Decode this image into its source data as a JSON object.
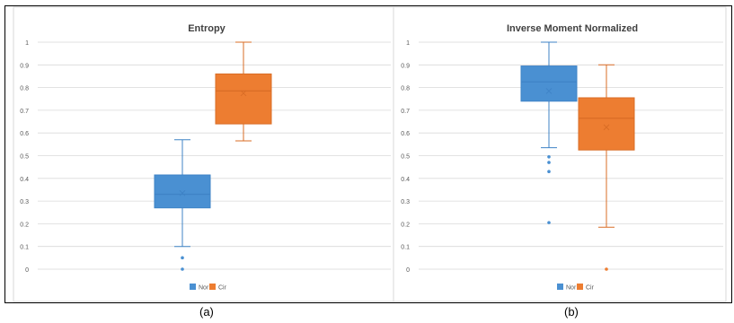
{
  "colors": {
    "nor": "#4a90d2",
    "cir": "#ed7d31",
    "nor_line": "#3f83c6",
    "cir_line": "#d96d26",
    "grid": "#d9d9d9",
    "text": "#595959"
  },
  "captions": [
    "(a)",
    "(b)"
  ],
  "chart_data": [
    {
      "type": "box",
      "title": "Entropy",
      "ylim": [
        0,
        1
      ],
      "yticks": [
        "0",
        "0.1",
        "0.2",
        "0.3",
        "0.4",
        "0.5",
        "0.6",
        "0.7",
        "0.8",
        "0.9",
        "1"
      ],
      "grid": true,
      "legend_position": "bottom",
      "series": [
        {
          "name": "Nor",
          "min": 0.1,
          "q1": 0.27,
          "median": 0.33,
          "q3": 0.415,
          "max": 0.57,
          "mean": 0.335,
          "outliers": [
            0.05,
            0.0
          ]
        },
        {
          "name": "Cir",
          "min": 0.565,
          "q1": 0.64,
          "median": 0.785,
          "q3": 0.86,
          "max": 1.0,
          "mean": 0.775,
          "outliers": []
        }
      ]
    },
    {
      "type": "box",
      "title": "Inverse Moment Normalized",
      "ylim": [
        0,
        1
      ],
      "yticks": [
        "0",
        "0.1",
        "0.2",
        "0.3",
        "0.4",
        "0.5",
        "0.6",
        "0.7",
        "0.8",
        "0.9",
        "1"
      ],
      "grid": true,
      "legend_position": "bottom",
      "series": [
        {
          "name": "Nor",
          "min": 0.535,
          "q1": 0.74,
          "median": 0.825,
          "q3": 0.895,
          "max": 1.0,
          "mean": 0.785,
          "outliers": [
            0.495,
            0.47,
            0.43,
            0.205
          ]
        },
        {
          "name": "Cir",
          "min": 0.185,
          "q1": 0.525,
          "median": 0.665,
          "q3": 0.755,
          "max": 0.9,
          "mean": 0.625,
          "outliers": [
            0.0
          ]
        }
      ]
    }
  ]
}
